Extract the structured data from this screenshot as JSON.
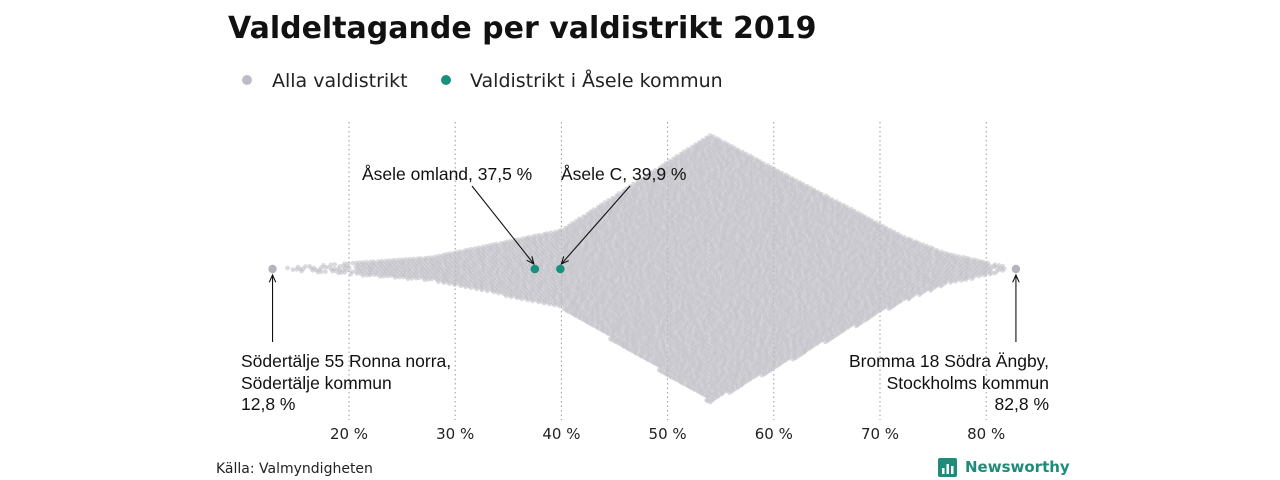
{
  "chart_data": {
    "type": "scatter",
    "title": "Valdeltagande per valdistrikt 2019",
    "legend": [
      {
        "label": "Alla valdistrikt",
        "color": "#bdbdc4"
      },
      {
        "label": "Valdistrikt i Åsele kommun",
        "color": "#17917c"
      }
    ],
    "x_ticks": [
      {
        "value": 20,
        "label": "20 %"
      },
      {
        "value": 30,
        "label": "30 %"
      },
      {
        "value": 40,
        "label": "40 %"
      },
      {
        "value": 50,
        "label": "50 %"
      },
      {
        "value": 60,
        "label": "60 %"
      },
      {
        "value": 70,
        "label": "70 %"
      },
      {
        "value": 80,
        "label": "80 %"
      }
    ],
    "xlim": [
      12,
      84
    ],
    "grid": "vertical-dotted",
    "highlighted": [
      {
        "label": "Åsele omland, 37,5 %",
        "value": 37.5
      },
      {
        "label": "Åsele C, 39,9 %",
        "value": 39.9
      }
    ],
    "extremes": [
      {
        "lines": [
          "Södertälje 55 Ronna norra,",
          "Södertälje kommun",
          "12,8 %"
        ],
        "value": 12.8,
        "align": "left"
      },
      {
        "lines": [
          "Bromma 18 Södra Ängby,",
          "Stockholms kommun",
          "82,8 %"
        ],
        "value": 82.8,
        "align": "right"
      }
    ],
    "distribution": {
      "min": 12.8,
      "mode": 54,
      "max": 82.8
    }
  },
  "footer": {
    "source": "Källa: Valmyndigheten",
    "brand": "Newsworthy"
  },
  "colors": {
    "all": "#bdbdc4",
    "highlight": "#17917c",
    "brand": "#1e8c78"
  }
}
